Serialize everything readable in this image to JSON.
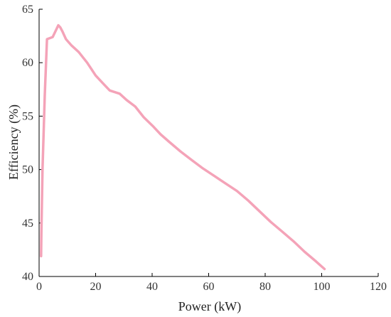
{
  "chart_data": {
    "type": "line",
    "xlabel": "Power (kW)",
    "ylabel": "Efficiency (%)",
    "xlim": [
      0,
      120
    ],
    "ylim": [
      40,
      65
    ],
    "x_ticks": [
      0,
      20,
      40,
      60,
      80,
      100,
      120
    ],
    "y_ticks": [
      40,
      45,
      50,
      55,
      60,
      65
    ],
    "x_tick_labels": [
      "0",
      "20",
      "40",
      "60",
      "80",
      "100",
      "120"
    ],
    "y_tick_labels": [
      "40",
      "45",
      "50",
      "55",
      "60",
      "65"
    ],
    "grid": false,
    "legend": "none",
    "series": [
      {
        "color": "#f4a3b8",
        "x": [
          0.7,
          0.8,
          1.2,
          2.0,
          2.8,
          4.8,
          6.8,
          7.5,
          8.3,
          9.5,
          11.5,
          14.0,
          17.0,
          20.0,
          22.5,
          25.0,
          28.5,
          31.0,
          34.0,
          37.0,
          40.5,
          43.0,
          46.0,
          50.0,
          54.0,
          58.0,
          62.0,
          66.0,
          70.0,
          74.0,
          78.0,
          82.0,
          86.0,
          90.0,
          94.0,
          98.0,
          101.0
        ],
        "y": [
          41.9,
          44.0,
          50.0,
          57.0,
          62.2,
          62.4,
          63.5,
          63.3,
          62.9,
          62.2,
          61.6,
          61.0,
          60.0,
          58.8,
          58.1,
          57.4,
          57.1,
          56.5,
          55.9,
          54.9,
          54.0,
          53.3,
          52.6,
          51.7,
          50.9,
          50.1,
          49.4,
          48.7,
          48.0,
          47.1,
          46.1,
          45.1,
          44.2,
          43.3,
          42.3,
          41.4,
          40.7
        ]
      }
    ]
  }
}
